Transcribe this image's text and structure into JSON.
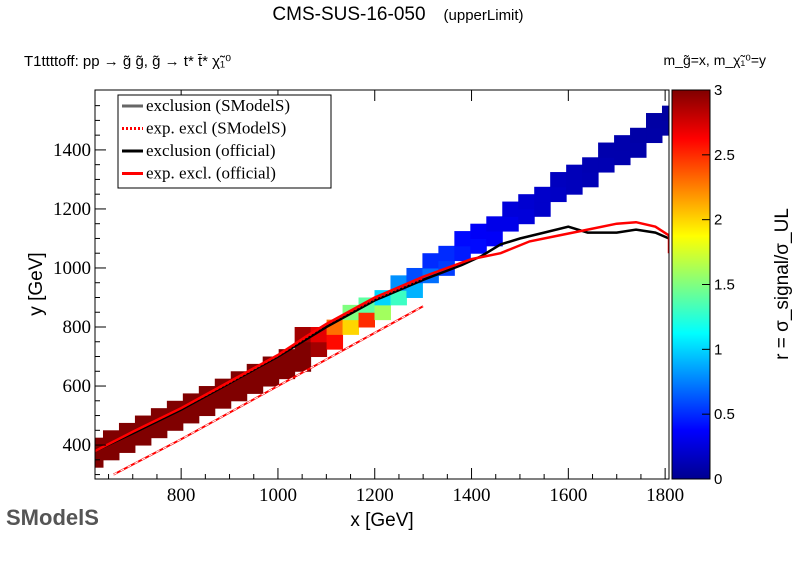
{
  "header": {
    "title": "CMS-SUS-16-050",
    "subtitle": "(upperLimit)",
    "process": "T1ttttoff: pp → g̃ g̃, g̃ → t* t̄* χ̃₁⁰",
    "axis_note": "m_g̃=x, m_χ̃₁⁰=y"
  },
  "logo": {
    "text": "SModelS"
  },
  "chart_data": {
    "type": "heatmap",
    "xlabel": "x [GeV]",
    "ylabel": "y [GeV]",
    "zlabel": "r = σ_signal/σ_UL",
    "xlim": [
      622,
      1808
    ],
    "ylim": [
      285,
      1603
    ],
    "zlim": [
      0,
      3
    ],
    "xticks": [
      800,
      1000,
      1200,
      1400,
      1600,
      1800
    ],
    "yticks": [
      400,
      600,
      800,
      1000,
      1200,
      1400
    ],
    "zticks": [
      0,
      0.5,
      1,
      1.5,
      2,
      2.5,
      3
    ],
    "legend": {
      "placement": "top-left",
      "entries": [
        {
          "label": "exclusion (SModelS)",
          "color": "#666666",
          "style": "solid"
        },
        {
          "label": "exp. excl (SModelS)",
          "color": "#ff0000",
          "style": "dotted"
        },
        {
          "label": "exclusion (official)",
          "color": "#000000",
          "style": "solid"
        },
        {
          "label": "exp. excl. (official)",
          "color": "#ff0000",
          "style": "solid"
        }
      ]
    },
    "bin_size": [
      33,
      50
    ],
    "cells": [
      [
        622,
        350,
        3
      ],
      [
        622,
        400,
        3
      ],
      [
        655,
        375,
        3
      ],
      [
        655,
        425,
        3
      ],
      [
        688,
        400,
        3
      ],
      [
        688,
        450,
        3
      ],
      [
        721,
        425,
        3
      ],
      [
        721,
        475,
        3
      ],
      [
        754,
        450,
        3
      ],
      [
        754,
        500,
        3
      ],
      [
        787,
        475,
        3
      ],
      [
        787,
        525,
        3
      ],
      [
        820,
        500,
        3
      ],
      [
        820,
        550,
        3
      ],
      [
        853,
        525,
        3
      ],
      [
        853,
        575,
        3
      ],
      [
        886,
        550,
        3
      ],
      [
        886,
        600,
        3
      ],
      [
        919,
        575,
        3
      ],
      [
        919,
        625,
        3
      ],
      [
        952,
        600,
        3
      ],
      [
        952,
        650,
        3
      ],
      [
        985,
        625,
        3
      ],
      [
        985,
        675,
        3
      ],
      [
        1018,
        650,
        3
      ],
      [
        1018,
        700,
        3
      ],
      [
        1051,
        675,
        3
      ],
      [
        1051,
        725,
        3
      ],
      [
        1051,
        775,
        2.9
      ],
      [
        1084,
        725,
        2.9
      ],
      [
        1084,
        775,
        2.7
      ],
      [
        1117,
        750,
        2.6
      ],
      [
        1117,
        800,
        2.3
      ],
      [
        1150,
        800,
        2.0
      ],
      [
        1150,
        850,
        1.5
      ],
      [
        1183,
        825,
        2.5
      ],
      [
        1183,
        875,
        1.4
      ],
      [
        1216,
        850,
        1.6
      ],
      [
        1216,
        900,
        1.0
      ],
      [
        1249,
        900,
        1.3
      ],
      [
        1249,
        950,
        0.8
      ],
      [
        1282,
        925,
        0.9
      ],
      [
        1282,
        975,
        0.6
      ],
      [
        1315,
        975,
        0.7
      ],
      [
        1315,
        1025,
        0.5
      ],
      [
        1348,
        1000,
        0.55
      ],
      [
        1348,
        1050,
        0.5
      ],
      [
        1381,
        1050,
        0.45
      ],
      [
        1381,
        1100,
        0.4
      ],
      [
        1414,
        1075,
        0.4
      ],
      [
        1414,
        1125,
        0.35
      ],
      [
        1447,
        1100,
        0.35
      ],
      [
        1447,
        1150,
        0.3
      ],
      [
        1480,
        1150,
        0.3
      ],
      [
        1480,
        1200,
        0.25
      ],
      [
        1513,
        1175,
        0.25
      ],
      [
        1513,
        1225,
        0.22
      ],
      [
        1546,
        1200,
        0.2
      ],
      [
        1546,
        1250,
        0.2
      ],
      [
        1579,
        1250,
        0.18
      ],
      [
        1579,
        1300,
        0.16
      ],
      [
        1612,
        1275,
        0.15
      ],
      [
        1612,
        1325,
        0.14
      ],
      [
        1645,
        1300,
        0.13
      ],
      [
        1645,
        1350,
        0.12
      ],
      [
        1678,
        1350,
        0.12
      ],
      [
        1678,
        1400,
        0.1
      ],
      [
        1711,
        1375,
        0.1
      ],
      [
        1711,
        1425,
        0.1
      ],
      [
        1744,
        1400,
        0.09
      ],
      [
        1744,
        1450,
        0.08
      ],
      [
        1777,
        1450,
        0.08
      ],
      [
        1777,
        1500,
        0.07
      ],
      [
        1810,
        1475,
        0.07
      ],
      [
        1810,
        1525,
        0.06
      ]
    ],
    "curves": {
      "exclusion_official": [
        [
          622,
          380
        ],
        [
          700,
          440
        ],
        [
          800,
          520
        ],
        [
          900,
          610
        ],
        [
          1000,
          700
        ],
        [
          1060,
          760
        ],
        [
          1100,
          800
        ],
        [
          1200,
          890
        ],
        [
          1300,
          960
        ],
        [
          1380,
          1010
        ],
        [
          1420,
          1040
        ],
        [
          1460,
          1080
        ],
        [
          1500,
          1100
        ],
        [
          1550,
          1120
        ],
        [
          1600,
          1140
        ],
        [
          1640,
          1120
        ],
        [
          1700,
          1120
        ],
        [
          1740,
          1130
        ],
        [
          1780,
          1120
        ],
        [
          1808,
          1100
        ]
      ],
      "exp_excl_official": [
        [
          622,
          380
        ],
        [
          700,
          445
        ],
        [
          800,
          525
        ],
        [
          900,
          615
        ],
        [
          1000,
          705
        ],
        [
          1060,
          770
        ],
        [
          1100,
          810
        ],
        [
          1200,
          900
        ],
        [
          1300,
          970
        ],
        [
          1400,
          1030
        ],
        [
          1460,
          1050
        ],
        [
          1520,
          1090
        ],
        [
          1580,
          1110
        ],
        [
          1640,
          1130
        ],
        [
          1700,
          1150
        ],
        [
          1740,
          1155
        ],
        [
          1780,
          1140
        ],
        [
          1808,
          1110
        ],
        [
          1808,
          1050
        ]
      ],
      "exp_excl_smodels": [
        [
          622,
          380
        ],
        [
          700,
          445
        ],
        [
          800,
          525
        ],
        [
          900,
          612
        ],
        [
          1000,
          703
        ],
        [
          1100,
          808
        ],
        [
          1200,
          895
        ],
        [
          1300,
          965
        ]
      ],
      "lower_edge_official": [
        [
          660,
          300
        ],
        [
          800,
          420
        ],
        [
          900,
          510
        ],
        [
          1000,
          600
        ],
        [
          1100,
          690
        ],
        [
          1200,
          780
        ],
        [
          1300,
          870
        ]
      ]
    }
  }
}
